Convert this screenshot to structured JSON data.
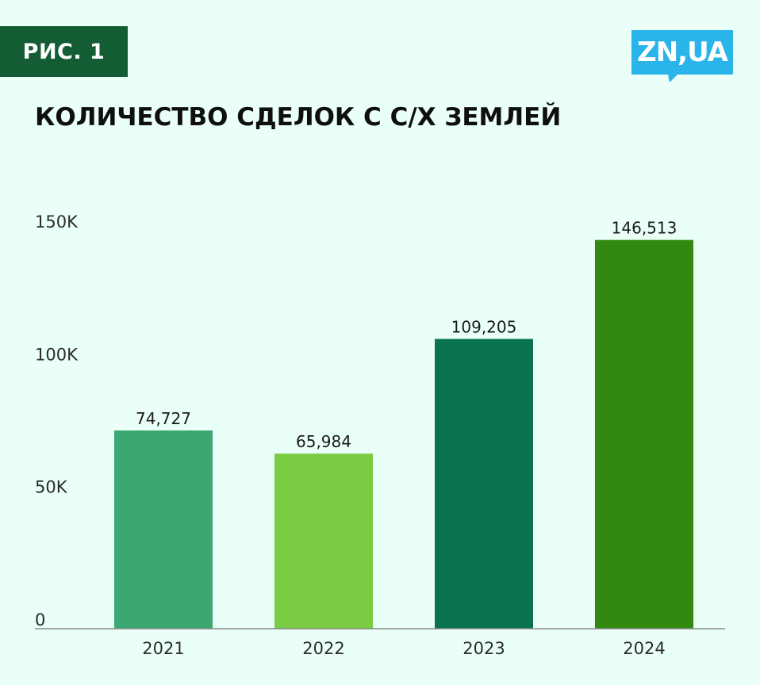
{
  "badge": {
    "label": "РИС. 1"
  },
  "logo": {
    "text": "ZN,UA",
    "color": "#29b5ea"
  },
  "chart_data": {
    "type": "bar",
    "title": "КОЛИЧЕСТВО СДЕЛОК С С/Х ЗЕМЛЕЙ",
    "xlabel": "",
    "ylabel": "",
    "categories": [
      "2021",
      "2022",
      "2023",
      "2024"
    ],
    "values": [
      74727,
      65984,
      109205,
      146513
    ],
    "value_labels": [
      "74,727",
      "65,984",
      "109,205",
      "146,513"
    ],
    "bar_colors": [
      "#3aa870",
      "#7acc42",
      "#08734c",
      "#31890f"
    ],
    "ylim": [
      0,
      150000
    ],
    "yticks": [
      0,
      50000,
      100000,
      150000
    ],
    "ytick_labels": [
      "0",
      "50K",
      "100K",
      "150K"
    ],
    "grid": false,
    "legend": "none"
  }
}
